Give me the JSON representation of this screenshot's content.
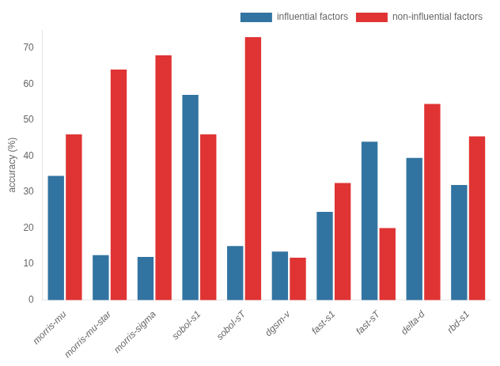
{
  "chart_data": {
    "type": "bar",
    "categories": [
      "morris-mu",
      "morris-mu-star",
      "morris-sigma",
      "sobol-s1",
      "sobol-sT",
      "dgsm-v",
      "fast-s1",
      "fast-sT",
      "delta-d",
      "rbd-s1"
    ],
    "series": [
      {
        "name": "influential factors",
        "color": "#3274a1",
        "values": [
          34.5,
          12.5,
          12.0,
          57.0,
          15.0,
          13.5,
          24.5,
          44.0,
          39.5,
          32.0
        ]
      },
      {
        "name": "non-influential factors",
        "color": "#e03333",
        "values": [
          46.0,
          64.0,
          68.0,
          46.0,
          73.0,
          11.8,
          32.5,
          20.0,
          54.5,
          45.5
        ]
      }
    ],
    "ylabel": "accuracy (%)",
    "ylim": [
      0,
      75
    ],
    "yticks": [
      0,
      10,
      20,
      30,
      40,
      50,
      60,
      70
    ],
    "legend": "upper right",
    "grid": false
  }
}
